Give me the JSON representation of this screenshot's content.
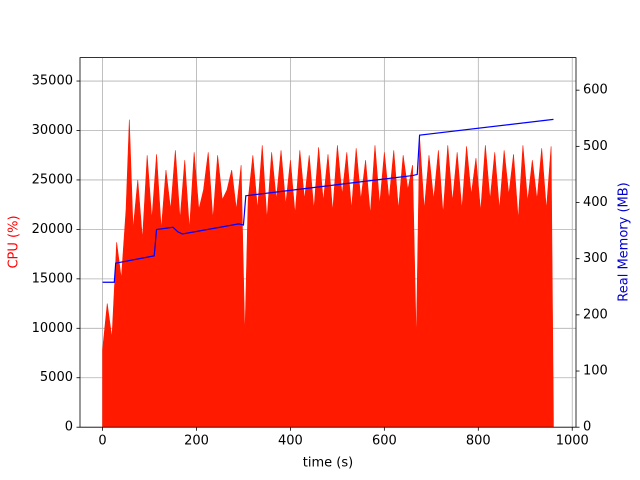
{
  "chart_data": {
    "type": "line",
    "xlabel": "time (s)",
    "ylabel": "CPU (%)",
    "y2label": "Real Memory (MB)",
    "ylabel_color": "#ff0000",
    "y2label_color": "#0000cc",
    "xlim": [
      -48,
      1008
    ],
    "xticks": [
      0,
      200,
      400,
      600,
      800,
      1000
    ],
    "ylim": [
      0,
      37370
    ],
    "yticks": [
      0,
      5000,
      10000,
      15000,
      20000,
      25000,
      30000,
      35000
    ],
    "y2lim": [
      0,
      658
    ],
    "y2ticks": [
      0,
      100,
      200,
      300,
      400,
      500,
      600
    ],
    "grid": true,
    "series": [
      {
        "color": "#ff1a00",
        "area": true,
        "axis": "y",
        "x": [
          0,
          10,
          20,
          30,
          40,
          50,
          57,
          65,
          75,
          85,
          95,
          105,
          115,
          125,
          135,
          145,
          155,
          165,
          175,
          185,
          195,
          205,
          215,
          225,
          235,
          245,
          255,
          265,
          275,
          285,
          295,
          303,
          310,
          320,
          330,
          340,
          350,
          360,
          370,
          380,
          390,
          400,
          410,
          420,
          430,
          440,
          450,
          460,
          470,
          480,
          490,
          500,
          510,
          520,
          530,
          540,
          550,
          560,
          570,
          580,
          590,
          600,
          610,
          620,
          630,
          640,
          650,
          660,
          668,
          675,
          685,
          695,
          705,
          715,
          725,
          735,
          745,
          755,
          765,
          775,
          785,
          795,
          805,
          815,
          825,
          835,
          845,
          855,
          865,
          875,
          885,
          895,
          905,
          915,
          925,
          935,
          945,
          955,
          960
        ],
        "values": [
          7800,
          12500,
          9000,
          18700,
          15000,
          22000,
          31100,
          20000,
          25000,
          19000,
          27500,
          21000,
          27600,
          20000,
          26000,
          22000,
          28000,
          21000,
          27000,
          20000,
          27800,
          22000,
          24000,
          27800,
          21000,
          27500,
          23000,
          24000,
          26000,
          22000,
          26500,
          9000,
          23000,
          27500,
          22000,
          28500,
          21000,
          27800,
          23000,
          28000,
          22500,
          27000,
          21500,
          28000,
          23000,
          27500,
          22000,
          28300,
          22800,
          27600,
          21800,
          28500,
          23500,
          27800,
          22000,
          28200,
          23000,
          27000,
          21500,
          28500,
          22500,
          27800,
          23000,
          28000,
          22000,
          27500,
          24000,
          26500,
          8500,
          29300,
          22000,
          27500,
          23000,
          28000,
          21500,
          28500,
          22800,
          27800,
          22000,
          28400,
          23500,
          27200,
          21800,
          28500,
          23000,
          27800,
          22000,
          28000,
          23500,
          27600,
          21000,
          28500,
          22800,
          27000,
          23000,
          28200,
          22000,
          28400,
          800
        ]
      },
      {
        "color": "#0000ff",
        "area": false,
        "axis": "y2",
        "x": [
          0,
          25,
          28,
          110,
          115,
          150,
          160,
          170,
          290,
          300,
          305,
          660,
          670,
          675,
          960
        ],
        "values": [
          258,
          258,
          292,
          305,
          352,
          356,
          348,
          344,
          362,
          360,
          412,
          448,
          450,
          520,
          548
        ]
      }
    ]
  }
}
